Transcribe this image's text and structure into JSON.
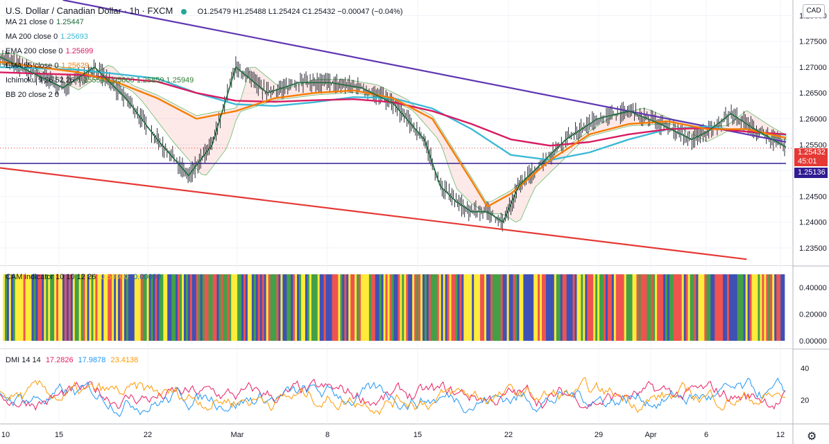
{
  "header": {
    "symbol": "U.S. Dollar / Canadian Dollar · 1h · FXCM",
    "ohlc": "O1.25479 H1.25488 L1.25424 C1.25432 −0.00047 (−0.04%)"
  },
  "currency_label": "CAD",
  "legends": [
    {
      "text": "MA 21 close 0",
      "value": "1.25447",
      "color": "#1e6b3a"
    },
    {
      "text": "MA 200 close 0",
      "value": "1.25693",
      "color": "#3bb9d6"
    },
    {
      "text": "EMA 200 close 0",
      "value": "1.25699",
      "color": "#d81b60"
    },
    {
      "text": "EMA 55 close 0",
      "value": "1.25629",
      "color": "#f57c00"
    },
    {
      "text": "Ichimoku 9 26 52 26",
      "value": "1.25551  1.25600  1.25859  1.25949",
      "color": "#2e7d32"
    },
    {
      "text": "BB 20 close 2 0",
      "value": "",
      "color": "#1565c0"
    }
  ],
  "price_tags": {
    "last": "1.25432",
    "countdown": "45:01",
    "support": "1.25136",
    "last_color": "#e53935",
    "support_color": "#311b92"
  },
  "cam_legend": {
    "text": "CAM indicator 10 10 12 26",
    "value1": "0.50000",
    "value2": "0.00000"
  },
  "dmi_legend": {
    "text": "DMI 14 14",
    "plus": "17.2826",
    "minus": "17.9878",
    "adx": "23.4138"
  },
  "chart_data": [
    {
      "type": "line",
      "title": "U.S. Dollar / Canadian Dollar · 1h · FXCM",
      "y_ticks": [
        "1.28000",
        "1.27500",
        "1.27000",
        "1.26500",
        "1.26000",
        "1.25500",
        "1.25000",
        "1.24500",
        "1.24000",
        "1.23500"
      ],
      "ylim": [
        1.2315,
        1.283
      ],
      "x_ticks": [
        "10",
        "15",
        "22",
        "Mar",
        "8",
        "15",
        "22",
        "29",
        "Apr",
        "6",
        "12"
      ],
      "grid": true,
      "series": [
        {
          "name": "MA 200 close 0",
          "color": "#3bb9d6",
          "x": [
            0.0,
            0.1,
            0.2,
            0.25,
            0.3,
            0.35,
            0.4,
            0.45,
            0.5,
            0.55,
            0.6,
            0.65,
            0.7,
            0.75,
            0.8,
            0.85,
            0.9,
            0.95,
            1.0
          ],
          "y": [
            1.27,
            1.2695,
            1.2678,
            1.265,
            1.2628,
            1.2625,
            1.2632,
            1.2642,
            1.264,
            1.262,
            1.258,
            1.253,
            1.252,
            1.2535,
            1.256,
            1.258,
            1.2585,
            1.2575,
            1.2569
          ]
        },
        {
          "name": "EMA 200 close 0",
          "color": "#d81b60",
          "x": [
            0.0,
            0.1,
            0.2,
            0.25,
            0.3,
            0.35,
            0.4,
            0.45,
            0.5,
            0.55,
            0.6,
            0.65,
            0.7,
            0.75,
            0.8,
            0.85,
            0.9,
            0.95,
            1.0
          ],
          "y": [
            1.269,
            1.2685,
            1.2672,
            1.265,
            1.2635,
            1.2633,
            1.2636,
            1.2638,
            1.2632,
            1.2615,
            1.259,
            1.256,
            1.2548,
            1.2555,
            1.257,
            1.258,
            1.2582,
            1.2575,
            1.257
          ]
        },
        {
          "name": "EMA 55 close 0",
          "color": "#f57c00",
          "x": [
            0.0,
            0.05,
            0.1,
            0.15,
            0.2,
            0.25,
            0.3,
            0.35,
            0.4,
            0.45,
            0.5,
            0.55,
            0.6,
            0.62,
            0.65,
            0.7,
            0.75,
            0.8,
            0.85,
            0.9,
            0.95,
            1.0
          ],
          "y": [
            1.271,
            1.27,
            1.269,
            1.267,
            1.264,
            1.26,
            1.2615,
            1.264,
            1.265,
            1.2655,
            1.264,
            1.26,
            1.248,
            1.243,
            1.2455,
            1.252,
            1.257,
            1.259,
            1.2595,
            1.258,
            1.258,
            1.2563
          ]
        },
        {
          "name": "MA 21 close 0",
          "color": "#1e6b3a",
          "x": [
            0.0,
            0.04,
            0.08,
            0.12,
            0.16,
            0.2,
            0.24,
            0.27,
            0.3,
            0.34,
            0.38,
            0.42,
            0.46,
            0.5,
            0.54,
            0.56,
            0.58,
            0.6,
            0.62,
            0.64,
            0.66,
            0.68,
            0.72,
            0.76,
            0.8,
            0.84,
            0.88,
            0.9,
            0.93,
            0.96,
            1.0
          ],
          "y": [
            1.272,
            1.269,
            1.266,
            1.27,
            1.264,
            1.256,
            1.249,
            1.255,
            1.27,
            1.265,
            1.267,
            1.267,
            1.266,
            1.263,
            1.256,
            1.247,
            1.244,
            1.242,
            1.242,
            1.24,
            1.247,
            1.25,
            1.256,
            1.26,
            1.2615,
            1.259,
            1.256,
            1.2575,
            1.261,
            1.258,
            1.2545
          ]
        }
      ],
      "trendlines": [
        {
          "name": "resistance",
          "color": "#5e35b1",
          "x": [
            0.08,
            1.0
          ],
          "y": [
            1.283,
            1.2555
          ]
        },
        {
          "name": "support-channel",
          "color": "#e53935",
          "x": [
            0.0,
            0.95
          ],
          "y": [
            1.2505,
            1.2328
          ]
        },
        {
          "name": "horizontal-support",
          "color": "#311b92",
          "x": [
            0.0,
            1.0
          ],
          "y": [
            1.25136,
            1.25136
          ]
        }
      ]
    },
    {
      "type": "bar",
      "title": "CAM indicator 10 10 12 26",
      "y_ticks": [
        "0.40000",
        "0.20000",
        "0.00000"
      ],
      "ylim": [
        0,
        0.5
      ],
      "palette": [
        "#ef5350",
        "#ffeb3b",
        "#43a047",
        "#3f51b5"
      ]
    },
    {
      "type": "line",
      "title": "DMI 14 14",
      "y_ticks": [
        "40",
        "20"
      ],
      "ylim": [
        5,
        52
      ],
      "series": [
        {
          "name": "DMI+",
          "color": "#e91e63"
        },
        {
          "name": "DMI-",
          "color": "#2196f3"
        },
        {
          "name": "ADX",
          "color": "#ff9800"
        }
      ]
    }
  ]
}
